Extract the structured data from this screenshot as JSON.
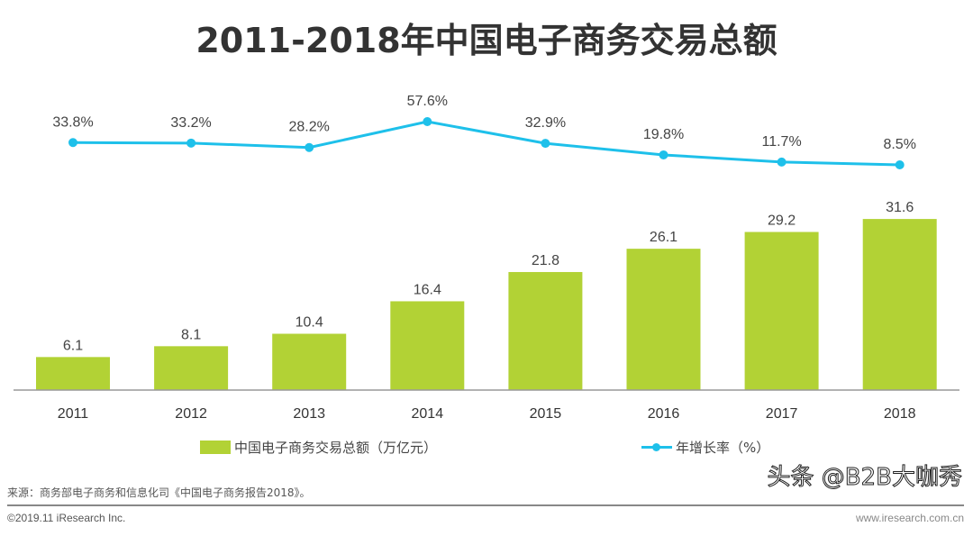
{
  "chart_data": {
    "type": "bar+line",
    "title": "2011-2018年中国电子商务交易总额",
    "categories": [
      "2011",
      "2012",
      "2013",
      "2014",
      "2015",
      "2016",
      "2017",
      "2018"
    ],
    "series": [
      {
        "name": "中国电子商务交易总额（万亿元）",
        "type": "bar",
        "color": "#b2d235",
        "values": [
          6.1,
          8.1,
          10.4,
          16.4,
          21.8,
          26.1,
          29.2,
          31.6
        ]
      },
      {
        "name": "年增长率（%）",
        "type": "line",
        "color": "#1ec0ea",
        "values": [
          33.8,
          33.2,
          28.2,
          57.6,
          32.9,
          19.8,
          11.7,
          8.5
        ],
        "labels": [
          "33.8%",
          "33.2%",
          "28.2%",
          "57.6%",
          "32.9%",
          "19.8%",
          "11.7%",
          "8.5%"
        ]
      }
    ],
    "grid": false,
    "legend": "bottom"
  },
  "footer": {
    "source": "来源：商务部电子商务和信息化司《中国电子商务报告2018》。",
    "copyright": "©2019.11 iResearch Inc.",
    "site": "www.iresearch.com.cn",
    "watermark": "头条 @B2B大咖秀"
  }
}
